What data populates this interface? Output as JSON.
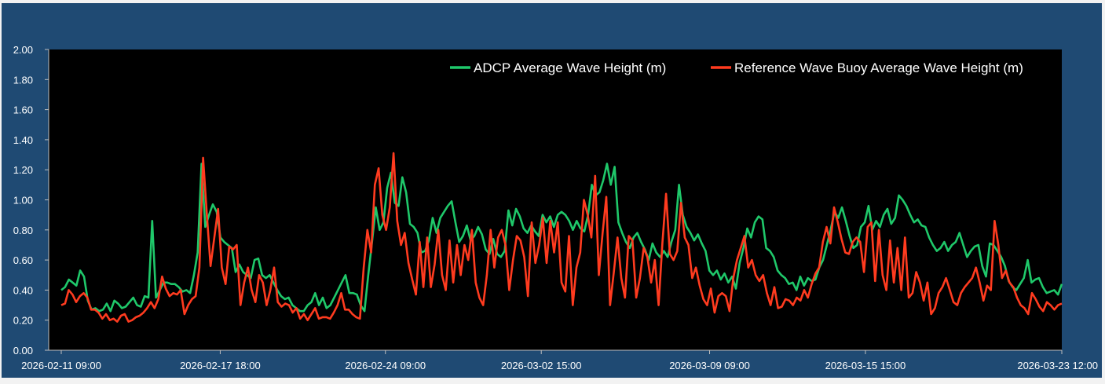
{
  "colors": {
    "background": "#1f4a73",
    "plot_area": "#000000",
    "adcp": "#1fc86a",
    "buoy": "#ff3b1f",
    "text": "#ffffff"
  },
  "chart_data": {
    "type": "line",
    "title": "",
    "xlabel": "",
    "ylabel": "",
    "x_start": "2026-02-11 09:00",
    "x_end": "2026-03-23 12:00",
    "ylim": [
      0,
      2
    ],
    "yticks": [
      "0.00",
      "0.20",
      "0.40",
      "0.60",
      "0.80",
      "1.00",
      "1.20",
      "1.40",
      "1.60",
      "1.80",
      "2.00"
    ],
    "xticks": [
      "2026-02-11 09:00",
      "2026-02-17 18:00",
      "2026-02-24 09:00",
      "2026-03-02 15:00",
      "2026-03-09 09:00",
      "2026-03-15 15:00",
      "2026-03-23 12:00"
    ],
    "grid": false,
    "legend_position": "top-right",
    "series": [
      {
        "name": "ADCP Average Wave Height (m)",
        "color": "#1fc86a",
        "values": [
          0.4,
          0.42,
          0.47,
          0.45,
          0.43,
          0.53,
          0.49,
          0.33,
          0.27,
          0.28,
          0.26,
          0.27,
          0.31,
          0.26,
          0.33,
          0.31,
          0.28,
          0.29,
          0.32,
          0.35,
          0.3,
          0.29,
          0.36,
          0.35,
          0.86,
          0.35,
          0.4,
          0.45,
          0.45,
          0.44,
          0.44,
          0.42,
          0.39,
          0.4,
          0.38,
          0.5,
          0.65,
          1.24,
          0.82,
          0.9,
          0.97,
          0.92,
          0.75,
          0.72,
          0.7,
          0.68,
          0.52,
          0.57,
          0.52,
          0.5,
          0.48,
          0.6,
          0.61,
          0.5,
          0.48,
          0.5,
          0.45,
          0.4,
          0.36,
          0.34,
          0.35,
          0.3,
          0.28,
          0.26,
          0.26,
          0.3,
          0.32,
          0.38,
          0.3,
          0.35,
          0.28,
          0.3,
          0.35,
          0.4,
          0.45,
          0.5,
          0.38,
          0.38,
          0.37,
          0.3,
          0.26,
          0.5,
          0.72,
          0.95,
          0.8,
          0.85,
          1.08,
          1.18,
          0.98,
          0.96,
          1.15,
          1.05,
          0.84,
          0.82,
          0.78,
          0.65,
          0.66,
          0.73,
          0.88,
          0.78,
          0.88,
          0.92,
          0.96,
          0.99,
          0.85,
          0.72,
          0.76,
          0.83,
          0.73,
          0.76,
          0.82,
          0.77,
          0.67,
          0.64,
          0.74,
          0.64,
          0.62,
          0.66,
          0.93,
          0.83,
          0.94,
          0.89,
          0.81,
          0.78,
          0.83,
          0.79,
          0.76,
          0.9,
          0.85,
          0.89,
          0.82,
          0.9,
          0.92,
          0.9,
          0.86,
          0.8,
          0.86,
          0.81,
          0.79,
          0.9,
          1.1,
          1.03,
          1.05,
          1.13,
          1.24,
          1.1,
          1.22,
          0.85,
          0.78,
          0.72,
          0.68,
          0.75,
          0.78,
          0.72,
          0.67,
          0.6,
          0.71,
          0.65,
          0.62,
          0.66,
          0.62,
          0.72,
          0.8,
          1.1,
          0.9,
          0.82,
          0.78,
          0.73,
          0.77,
          0.71,
          0.66,
          0.53,
          0.5,
          0.53,
          0.47,
          0.51,
          0.45,
          0.49,
          0.41,
          0.58,
          0.68,
          0.81,
          0.75,
          0.85,
          0.89,
          0.87,
          0.68,
          0.66,
          0.62,
          0.53,
          0.5,
          0.48,
          0.44,
          0.45,
          0.4,
          0.49,
          0.43,
          0.48,
          0.46,
          0.47,
          0.55,
          0.6,
          0.7,
          0.8,
          0.92,
          0.88,
          0.95,
          0.86,
          0.76,
          0.68,
          0.7,
          0.82,
          0.85,
          0.96,
          0.8,
          0.86,
          0.82,
          0.9,
          0.94,
          0.84,
          0.88,
          1.03,
          1.0,
          0.96,
          0.9,
          0.85,
          0.87,
          0.83,
          0.82,
          0.75,
          0.7,
          0.66,
          0.68,
          0.72,
          0.66,
          0.7,
          0.72,
          0.78,
          0.7,
          0.62,
          0.66,
          0.69,
          0.7,
          0.56,
          0.49,
          0.71,
          0.7,
          0.66,
          0.62,
          0.56,
          0.46,
          0.42,
          0.4,
          0.44,
          0.48,
          0.6,
          0.45,
          0.47,
          0.48,
          0.42,
          0.38,
          0.39,
          0.4,
          0.37,
          0.44
        ]
      },
      {
        "name": "Reference Wave Buoy Average Wave Height (m)",
        "color": "#ff3b1f",
        "values": [
          0.3,
          0.31,
          0.4,
          0.37,
          0.32,
          0.36,
          0.38,
          0.35,
          0.27,
          0.27,
          0.25,
          0.21,
          0.24,
          0.2,
          0.21,
          0.19,
          0.23,
          0.24,
          0.19,
          0.2,
          0.22,
          0.23,
          0.25,
          0.28,
          0.32,
          0.28,
          0.34,
          0.49,
          0.41,
          0.36,
          0.38,
          0.37,
          0.4,
          0.24,
          0.3,
          0.34,
          0.36,
          0.55,
          1.28,
          0.9,
          0.56,
          0.75,
          0.94,
          0.55,
          0.44,
          0.69,
          0.67,
          0.7,
          0.3,
          0.45,
          0.55,
          0.4,
          0.32,
          0.5,
          0.45,
          0.3,
          0.4,
          0.55,
          0.32,
          0.29,
          0.31,
          0.3,
          0.25,
          0.28,
          0.21,
          0.24,
          0.2,
          0.24,
          0.28,
          0.21,
          0.22,
          0.22,
          0.21,
          0.25,
          0.3,
          0.38,
          0.27,
          0.27,
          0.24,
          0.22,
          0.21,
          0.55,
          0.8,
          0.65,
          1.1,
          1.21,
          0.9,
          0.8,
          0.95,
          1.31,
          0.86,
          0.7,
          0.78,
          0.58,
          0.47,
          0.37,
          0.72,
          0.42,
          0.75,
          0.42,
          0.57,
          0.8,
          0.5,
          0.4,
          0.73,
          0.45,
          0.7,
          0.5,
          0.7,
          0.6,
          0.8,
          0.45,
          0.35,
          0.3,
          0.5,
          0.8,
          0.55,
          0.75,
          0.8,
          0.7,
          0.4,
          0.6,
          0.76,
          0.73,
          0.62,
          0.36,
          0.85,
          0.58,
          0.7,
          0.88,
          0.58,
          0.86,
          0.65,
          0.85,
          0.45,
          0.39,
          0.76,
          0.3,
          0.55,
          0.65,
          1.0,
          0.9,
          0.75,
          1.16,
          0.5,
          0.78,
          1.02,
          0.3,
          0.52,
          0.75,
          0.48,
          0.35,
          0.76,
          0.73,
          0.35,
          0.48,
          0.68,
          0.62,
          0.45,
          0.6,
          0.3,
          0.71,
          1.04,
          0.64,
          0.6,
          0.66,
          0.98,
          0.75,
          0.7,
          0.48,
          0.55,
          0.43,
          0.34,
          0.3,
          0.41,
          0.25,
          0.36,
          0.38,
          0.36,
          0.26,
          0.48,
          0.6,
          0.68,
          0.76,
          0.55,
          0.6,
          0.5,
          0.46,
          0.5,
          0.38,
          0.3,
          0.42,
          0.28,
          0.29,
          0.34,
          0.33,
          0.3,
          0.35,
          0.33,
          0.4,
          0.35,
          0.44,
          0.51,
          0.55,
          0.72,
          0.82,
          0.71,
          0.95,
          0.85,
          0.74,
          0.65,
          0.64,
          0.72,
          0.75,
          0.72,
          0.52,
          0.82,
          0.85,
          0.46,
          0.8,
          0.5,
          0.4,
          0.73,
          0.45,
          0.68,
          0.4,
          0.75,
          0.35,
          0.38,
          0.52,
          0.45,
          0.33,
          0.45,
          0.24,
          0.28,
          0.38,
          0.42,
          0.48,
          0.4,
          0.32,
          0.3,
          0.38,
          0.42,
          0.45,
          0.48,
          0.55,
          0.45,
          0.33,
          0.43,
          0.4,
          0.86,
          0.7,
          0.48,
          0.53,
          0.45,
          0.42,
          0.35,
          0.3,
          0.28,
          0.24,
          0.38,
          0.34,
          0.29,
          0.26,
          0.32,
          0.3,
          0.27,
          0.3,
          0.31
        ]
      }
    ]
  }
}
